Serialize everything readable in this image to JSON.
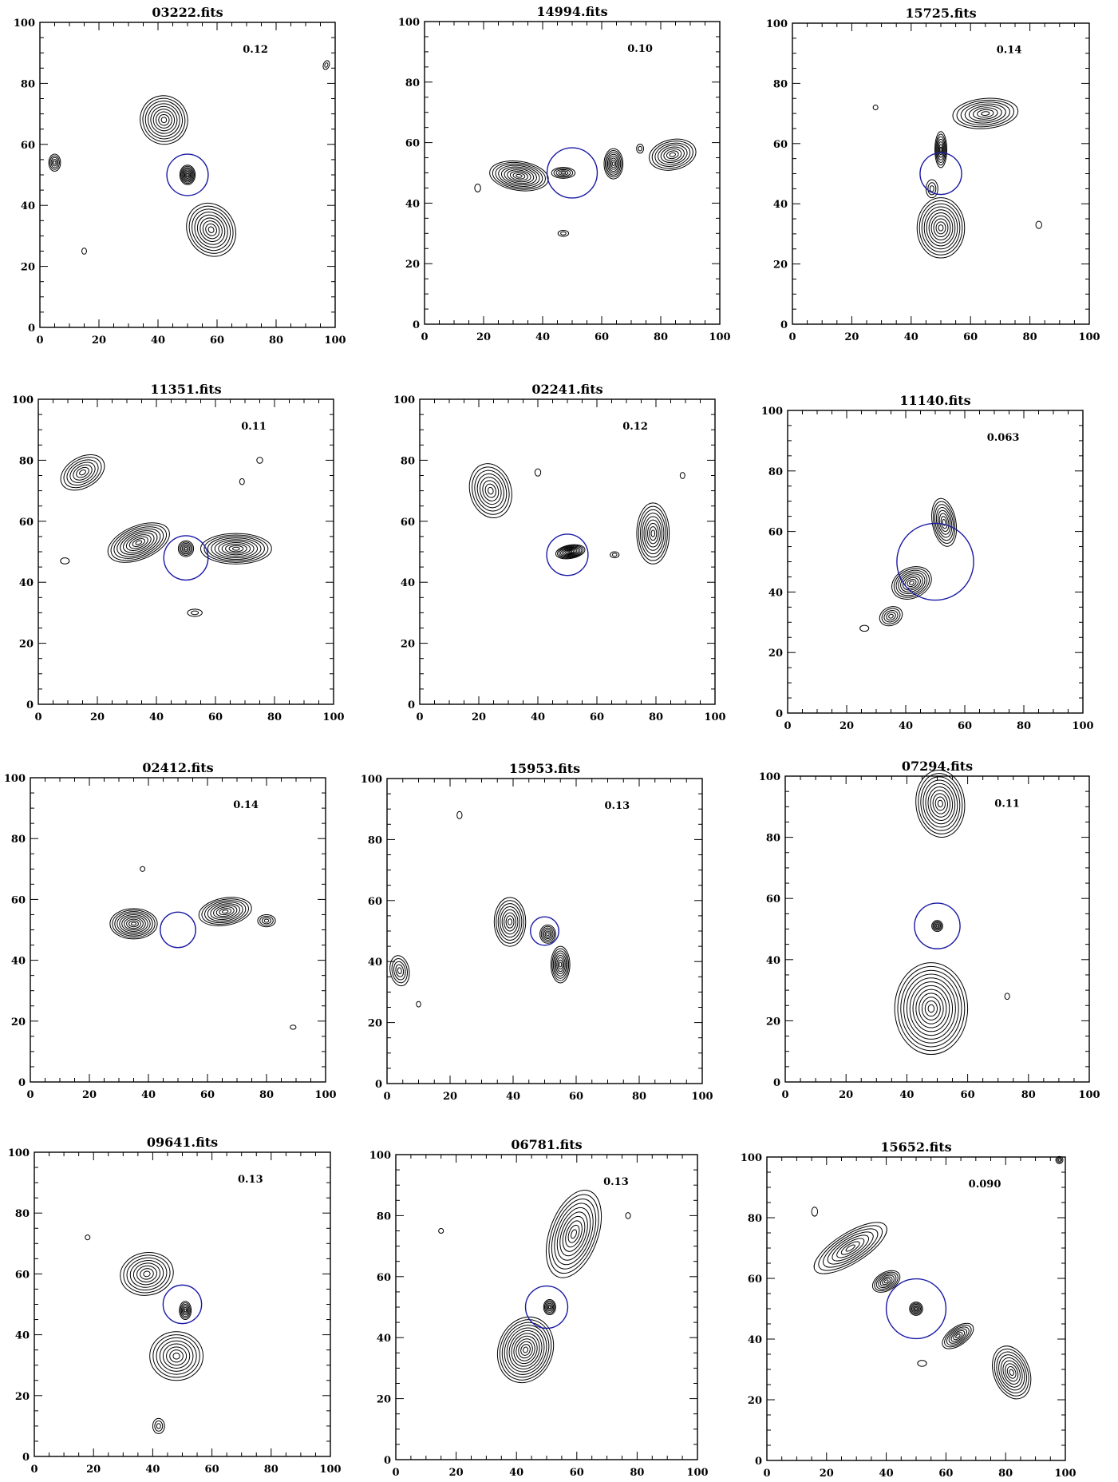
{
  "chart_data": [
    {
      "type": "contour",
      "title": "03222.fits",
      "annotation": "0.12",
      "xlim": [
        0,
        100
      ],
      "ylim": [
        0,
        100
      ],
      "xticks": [
        0,
        20,
        40,
        60,
        80,
        100
      ],
      "yticks": [
        0,
        20,
        40,
        60,
        80,
        100
      ],
      "marker_circle": {
        "cx": 50,
        "cy": 50,
        "r": 7
      },
      "components": [
        {
          "cx": 42,
          "cy": 68,
          "rx": 8,
          "ry": 8,
          "rot": -20,
          "levels": 9
        },
        {
          "cx": 50,
          "cy": 50,
          "rx": 2.6,
          "ry": 3.2,
          "rot": 0,
          "levels": 8
        },
        {
          "cx": 58,
          "cy": 32,
          "rx": 8,
          "ry": 9,
          "rot": -30,
          "levels": 9
        },
        {
          "cx": 5,
          "cy": 54,
          "rx": 2,
          "ry": 2.8,
          "rot": 0,
          "levels": 5
        },
        {
          "cx": 15,
          "cy": 25,
          "rx": 0.8,
          "ry": 1,
          "rot": 0,
          "levels": 1
        },
        {
          "cx": 97,
          "cy": 86,
          "rx": 1,
          "ry": 1.5,
          "rot": 20,
          "levels": 2
        }
      ]
    },
    {
      "type": "contour",
      "title": "14994.fits",
      "annotation": "0.10",
      "xlim": [
        0,
        100
      ],
      "ylim": [
        0,
        100
      ],
      "xticks": [
        0,
        20,
        40,
        60,
        80,
        100
      ],
      "yticks": [
        0,
        20,
        40,
        60,
        80,
        100
      ],
      "marker_circle": {
        "cx": 50,
        "cy": 50,
        "r": 8.5
      },
      "components": [
        {
          "cx": 32,
          "cy": 49,
          "rx": 10,
          "ry": 4.8,
          "rot": 8,
          "levels": 10
        },
        {
          "cx": 47,
          "cy": 50,
          "rx": 4,
          "ry": 1.8,
          "rot": 0,
          "levels": 5
        },
        {
          "cx": 64,
          "cy": 53,
          "rx": 3.2,
          "ry": 5,
          "rot": 0,
          "levels": 8
        },
        {
          "cx": 84,
          "cy": 56,
          "rx": 8,
          "ry": 5,
          "rot": -12,
          "levels": 8
        },
        {
          "cx": 73,
          "cy": 58,
          "rx": 1.2,
          "ry": 1.5,
          "rot": 0,
          "levels": 2
        },
        {
          "cx": 47,
          "cy": 30,
          "rx": 1.8,
          "ry": 1,
          "rot": 0,
          "levels": 2
        },
        {
          "cx": 18,
          "cy": 45,
          "rx": 1,
          "ry": 1.3,
          "rot": 0,
          "levels": 1
        }
      ]
    },
    {
      "type": "contour",
      "title": "15725.fits",
      "annotation": "0.14",
      "xlim": [
        0,
        100
      ],
      "ylim": [
        0,
        100
      ],
      "xticks": [
        0,
        20,
        40,
        60,
        80,
        100
      ],
      "yticks": [
        0,
        20,
        40,
        60,
        80,
        100
      ],
      "marker_circle": {
        "cx": 50,
        "cy": 50,
        "r": 7
      },
      "components": [
        {
          "cx": 65,
          "cy": 70,
          "rx": 11,
          "ry": 5,
          "rot": -5,
          "levels": 8
        },
        {
          "cx": 50,
          "cy": 58,
          "rx": 2,
          "ry": 6,
          "rot": 0,
          "levels": 7
        },
        {
          "cx": 50,
          "cy": 32,
          "rx": 8,
          "ry": 10,
          "rot": 0,
          "levels": 10
        },
        {
          "cx": 47,
          "cy": 45,
          "rx": 2,
          "ry": 3,
          "rot": 0,
          "levels": 3
        },
        {
          "cx": 83,
          "cy": 33,
          "rx": 1,
          "ry": 1.2,
          "rot": 0,
          "levels": 1
        },
        {
          "cx": 28,
          "cy": 72,
          "rx": 0.8,
          "ry": 0.8,
          "rot": 0,
          "levels": 1
        }
      ]
    },
    {
      "type": "contour",
      "title": "11351.fits",
      "annotation": "0.11",
      "xlim": [
        0,
        100
      ],
      "ylim": [
        0,
        100
      ],
      "xticks": [
        0,
        20,
        40,
        60,
        80,
        100
      ],
      "yticks": [
        0,
        20,
        40,
        60,
        80,
        100
      ],
      "marker_circle": {
        "cx": 50,
        "cy": 48,
        "r": 7.5
      },
      "components": [
        {
          "cx": 15,
          "cy": 76,
          "rx": 8,
          "ry": 5,
          "rot": -30,
          "levels": 7
        },
        {
          "cx": 34,
          "cy": 53,
          "rx": 11,
          "ry": 5.5,
          "rot": -22,
          "levels": 10
        },
        {
          "cx": 50,
          "cy": 51,
          "rx": 2.6,
          "ry": 2.6,
          "rot": 0,
          "levels": 6
        },
        {
          "cx": 67,
          "cy": 51,
          "rx": 12,
          "ry": 5,
          "rot": 0,
          "levels": 10
        },
        {
          "cx": 53,
          "cy": 30,
          "rx": 2.5,
          "ry": 1.2,
          "rot": 0,
          "levels": 2
        },
        {
          "cx": 75,
          "cy": 80,
          "rx": 1,
          "ry": 1,
          "rot": 0,
          "levels": 1
        },
        {
          "cx": 9,
          "cy": 47,
          "rx": 1.5,
          "ry": 1,
          "rot": 0,
          "levels": 1
        },
        {
          "cx": 69,
          "cy": 73,
          "rx": 0.8,
          "ry": 1,
          "rot": 0,
          "levels": 1
        }
      ]
    },
    {
      "type": "contour",
      "title": "02241.fits",
      "annotation": "0.12",
      "xlim": [
        0,
        100
      ],
      "ylim": [
        0,
        100
      ],
      "xticks": [
        0,
        20,
        40,
        60,
        80,
        100
      ],
      "yticks": [
        0,
        20,
        40,
        60,
        80,
        100
      ],
      "marker_circle": {
        "cx": 50,
        "cy": 49,
        "r": 7
      },
      "components": [
        {
          "cx": 24,
          "cy": 70,
          "rx": 7,
          "ry": 9,
          "rot": -15,
          "levels": 8
        },
        {
          "cx": 51,
          "cy": 50,
          "rx": 5,
          "ry": 2.2,
          "rot": -10,
          "levels": 9
        },
        {
          "cx": 79,
          "cy": 56,
          "rx": 5.5,
          "ry": 10,
          "rot": 0,
          "levels": 9
        },
        {
          "cx": 66,
          "cy": 49,
          "rx": 1.5,
          "ry": 1,
          "rot": 0,
          "levels": 2
        },
        {
          "cx": 40,
          "cy": 76,
          "rx": 1,
          "ry": 1.2,
          "rot": 0,
          "levels": 1
        },
        {
          "cx": 89,
          "cy": 75,
          "rx": 0.8,
          "ry": 1,
          "rot": 0,
          "levels": 1
        }
      ]
    },
    {
      "type": "contour",
      "title": "11140.fits",
      "annotation": "0.063",
      "xlim": [
        0,
        100
      ],
      "ylim": [
        0,
        100
      ],
      "xticks": [
        0,
        20,
        40,
        60,
        80,
        100
      ],
      "yticks": [
        0,
        20,
        40,
        60,
        80,
        100
      ],
      "marker_circle": {
        "cx": 50,
        "cy": 50,
        "r": 13
      },
      "components": [
        {
          "cx": 53,
          "cy": 63,
          "rx": 4,
          "ry": 8,
          "rot": -10,
          "levels": 8
        },
        {
          "cx": 42,
          "cy": 43,
          "rx": 7,
          "ry": 5,
          "rot": -25,
          "levels": 9
        },
        {
          "cx": 35,
          "cy": 32,
          "rx": 4,
          "ry": 3,
          "rot": -25,
          "levels": 5
        },
        {
          "cx": 26,
          "cy": 28,
          "rx": 1.5,
          "ry": 1,
          "rot": 0,
          "levels": 1
        }
      ]
    },
    {
      "type": "contour",
      "title": "02412.fits",
      "annotation": "0.14",
      "xlim": [
        0,
        100
      ],
      "ylim": [
        0,
        100
      ],
      "xticks": [
        0,
        20,
        40,
        60,
        80,
        100
      ],
      "yticks": [
        0,
        20,
        40,
        60,
        80,
        100
      ],
      "marker_circle": {
        "cx": 50,
        "cy": 50,
        "r": 6
      },
      "components": [
        {
          "cx": 35,
          "cy": 52,
          "rx": 8,
          "ry": 5,
          "rot": 0,
          "levels": 10
        },
        {
          "cx": 66,
          "cy": 56,
          "rx": 9,
          "ry": 4.5,
          "rot": -10,
          "levels": 9
        },
        {
          "cx": 80,
          "cy": 53,
          "rx": 3,
          "ry": 2,
          "rot": 0,
          "levels": 4
        },
        {
          "cx": 38,
          "cy": 70,
          "rx": 0.8,
          "ry": 0.8,
          "rot": 0,
          "levels": 1
        },
        {
          "cx": 89,
          "cy": 18,
          "rx": 1,
          "ry": 0.7,
          "rot": 0,
          "levels": 1
        }
      ]
    },
    {
      "type": "contour",
      "title": "15953.fits",
      "annotation": "0.13",
      "xlim": [
        0,
        100
      ],
      "ylim": [
        0,
        100
      ],
      "xticks": [
        0,
        20,
        40,
        60,
        80,
        100
      ],
      "yticks": [
        0,
        20,
        40,
        60,
        80,
        100
      ],
      "marker_circle": {
        "cx": 50,
        "cy": 50,
        "r": 4.5
      },
      "components": [
        {
          "cx": 39,
          "cy": 53,
          "rx": 5,
          "ry": 8,
          "rot": 0,
          "levels": 8
        },
        {
          "cx": 51,
          "cy": 49,
          "rx": 2.5,
          "ry": 3,
          "rot": 0,
          "levels": 6
        },
        {
          "cx": 55,
          "cy": 39,
          "rx": 3,
          "ry": 6,
          "rot": 0,
          "levels": 8
        },
        {
          "cx": 4,
          "cy": 37,
          "rx": 3,
          "ry": 5,
          "rot": -10,
          "levels": 5
        },
        {
          "cx": 23,
          "cy": 88,
          "rx": 0.8,
          "ry": 1.2,
          "rot": 0,
          "levels": 1
        },
        {
          "cx": 10,
          "cy": 26,
          "rx": 0.7,
          "ry": 0.9,
          "rot": 0,
          "levels": 1
        }
      ]
    },
    {
      "type": "contour",
      "title": "07294.fits",
      "annotation": "0.11",
      "xlim": [
        0,
        100
      ],
      "ylim": [
        0,
        100
      ],
      "xticks": [
        0,
        20,
        40,
        60,
        80,
        100
      ],
      "yticks": [
        0,
        20,
        40,
        60,
        80,
        100
      ],
      "marker_circle": {
        "cx": 50,
        "cy": 51,
        "r": 7.5
      },
      "components": [
        {
          "cx": 51,
          "cy": 91,
          "rx": 8,
          "ry": 11,
          "rot": -5,
          "levels": 10
        },
        {
          "cx": 50,
          "cy": 51,
          "rx": 1.8,
          "ry": 1.8,
          "rot": 0,
          "levels": 5
        },
        {
          "cx": 48,
          "cy": 24,
          "rx": 12,
          "ry": 15,
          "rot": 0,
          "levels": 12
        },
        {
          "cx": 73,
          "cy": 28,
          "rx": 0.8,
          "ry": 1,
          "rot": 0,
          "levels": 1
        }
      ]
    },
    {
      "type": "contour",
      "title": "09641.fits",
      "annotation": "0.13",
      "xlim": [
        0,
        100
      ],
      "ylim": [
        0,
        100
      ],
      "xticks": [
        0,
        20,
        40,
        60,
        80,
        100
      ],
      "yticks": [
        0,
        20,
        40,
        60,
        80,
        100
      ],
      "marker_circle": {
        "cx": 50,
        "cy": 50,
        "r": 6.5
      },
      "components": [
        {
          "cx": 38,
          "cy": 60,
          "rx": 9,
          "ry": 7,
          "rot": -10,
          "levels": 8
        },
        {
          "cx": 51,
          "cy": 48,
          "rx": 2,
          "ry": 3,
          "rot": 0,
          "levels": 6
        },
        {
          "cx": 48,
          "cy": 33,
          "rx": 9,
          "ry": 8,
          "rot": 0,
          "levels": 8
        },
        {
          "cx": 42,
          "cy": 10,
          "rx": 2,
          "ry": 2.5,
          "rot": 0,
          "levels": 3
        },
        {
          "cx": 18,
          "cy": 72,
          "rx": 0.8,
          "ry": 0.8,
          "rot": 0,
          "levels": 1
        }
      ]
    },
    {
      "type": "contour",
      "title": "06781.fits",
      "annotation": "0.13",
      "xlim": [
        0,
        100
      ],
      "ylim": [
        0,
        100
      ],
      "xticks": [
        0,
        20,
        40,
        60,
        80,
        100
      ],
      "yticks": [
        0,
        20,
        40,
        60,
        80,
        100
      ],
      "marker_circle": {
        "cx": 50,
        "cy": 50,
        "r": 7
      },
      "components": [
        {
          "cx": 59,
          "cy": 74,
          "rx": 8,
          "ry": 15,
          "rot": 20,
          "levels": 10
        },
        {
          "cx": 51,
          "cy": 50,
          "rx": 2,
          "ry": 2.5,
          "rot": 0,
          "levels": 6
        },
        {
          "cx": 43,
          "cy": 36,
          "rx": 9,
          "ry": 11,
          "rot": 20,
          "levels": 12
        },
        {
          "cx": 15,
          "cy": 75,
          "rx": 0.8,
          "ry": 0.8,
          "rot": 0,
          "levels": 1
        },
        {
          "cx": 77,
          "cy": 80,
          "rx": 0.8,
          "ry": 1,
          "rot": 0,
          "levels": 1
        }
      ]
    },
    {
      "type": "contour",
      "title": "15652.fits",
      "annotation": "0.090",
      "xlim": [
        0,
        100
      ],
      "ylim": [
        0,
        100
      ],
      "xticks": [
        0,
        20,
        40,
        60,
        80,
        100
      ],
      "yticks": [
        0,
        20,
        40,
        60,
        80,
        100
      ],
      "marker_circle": {
        "cx": 50,
        "cy": 50,
        "r": 10
      },
      "components": [
        {
          "cx": 28,
          "cy": 70,
          "rx": 14,
          "ry": 5,
          "rot": -32,
          "levels": 8
        },
        {
          "cx": 40,
          "cy": 59,
          "rx": 5,
          "ry": 3,
          "rot": -30,
          "levels": 7
        },
        {
          "cx": 50,
          "cy": 50,
          "rx": 2.2,
          "ry": 2.2,
          "rot": 0,
          "levels": 6
        },
        {
          "cx": 64,
          "cy": 41,
          "rx": 6,
          "ry": 3,
          "rot": -35,
          "levels": 7
        },
        {
          "cx": 82,
          "cy": 29,
          "rx": 6,
          "ry": 9,
          "rot": -20,
          "levels": 9
        },
        {
          "cx": 16,
          "cy": 82,
          "rx": 1,
          "ry": 1.5,
          "rot": 0,
          "levels": 1
        },
        {
          "cx": 52,
          "cy": 32,
          "rx": 1.5,
          "ry": 1,
          "rot": 0,
          "levels": 1
        },
        {
          "cx": 98,
          "cy": 99,
          "rx": 1.2,
          "ry": 1.2,
          "rot": 0,
          "levels": 3
        }
      ]
    }
  ]
}
